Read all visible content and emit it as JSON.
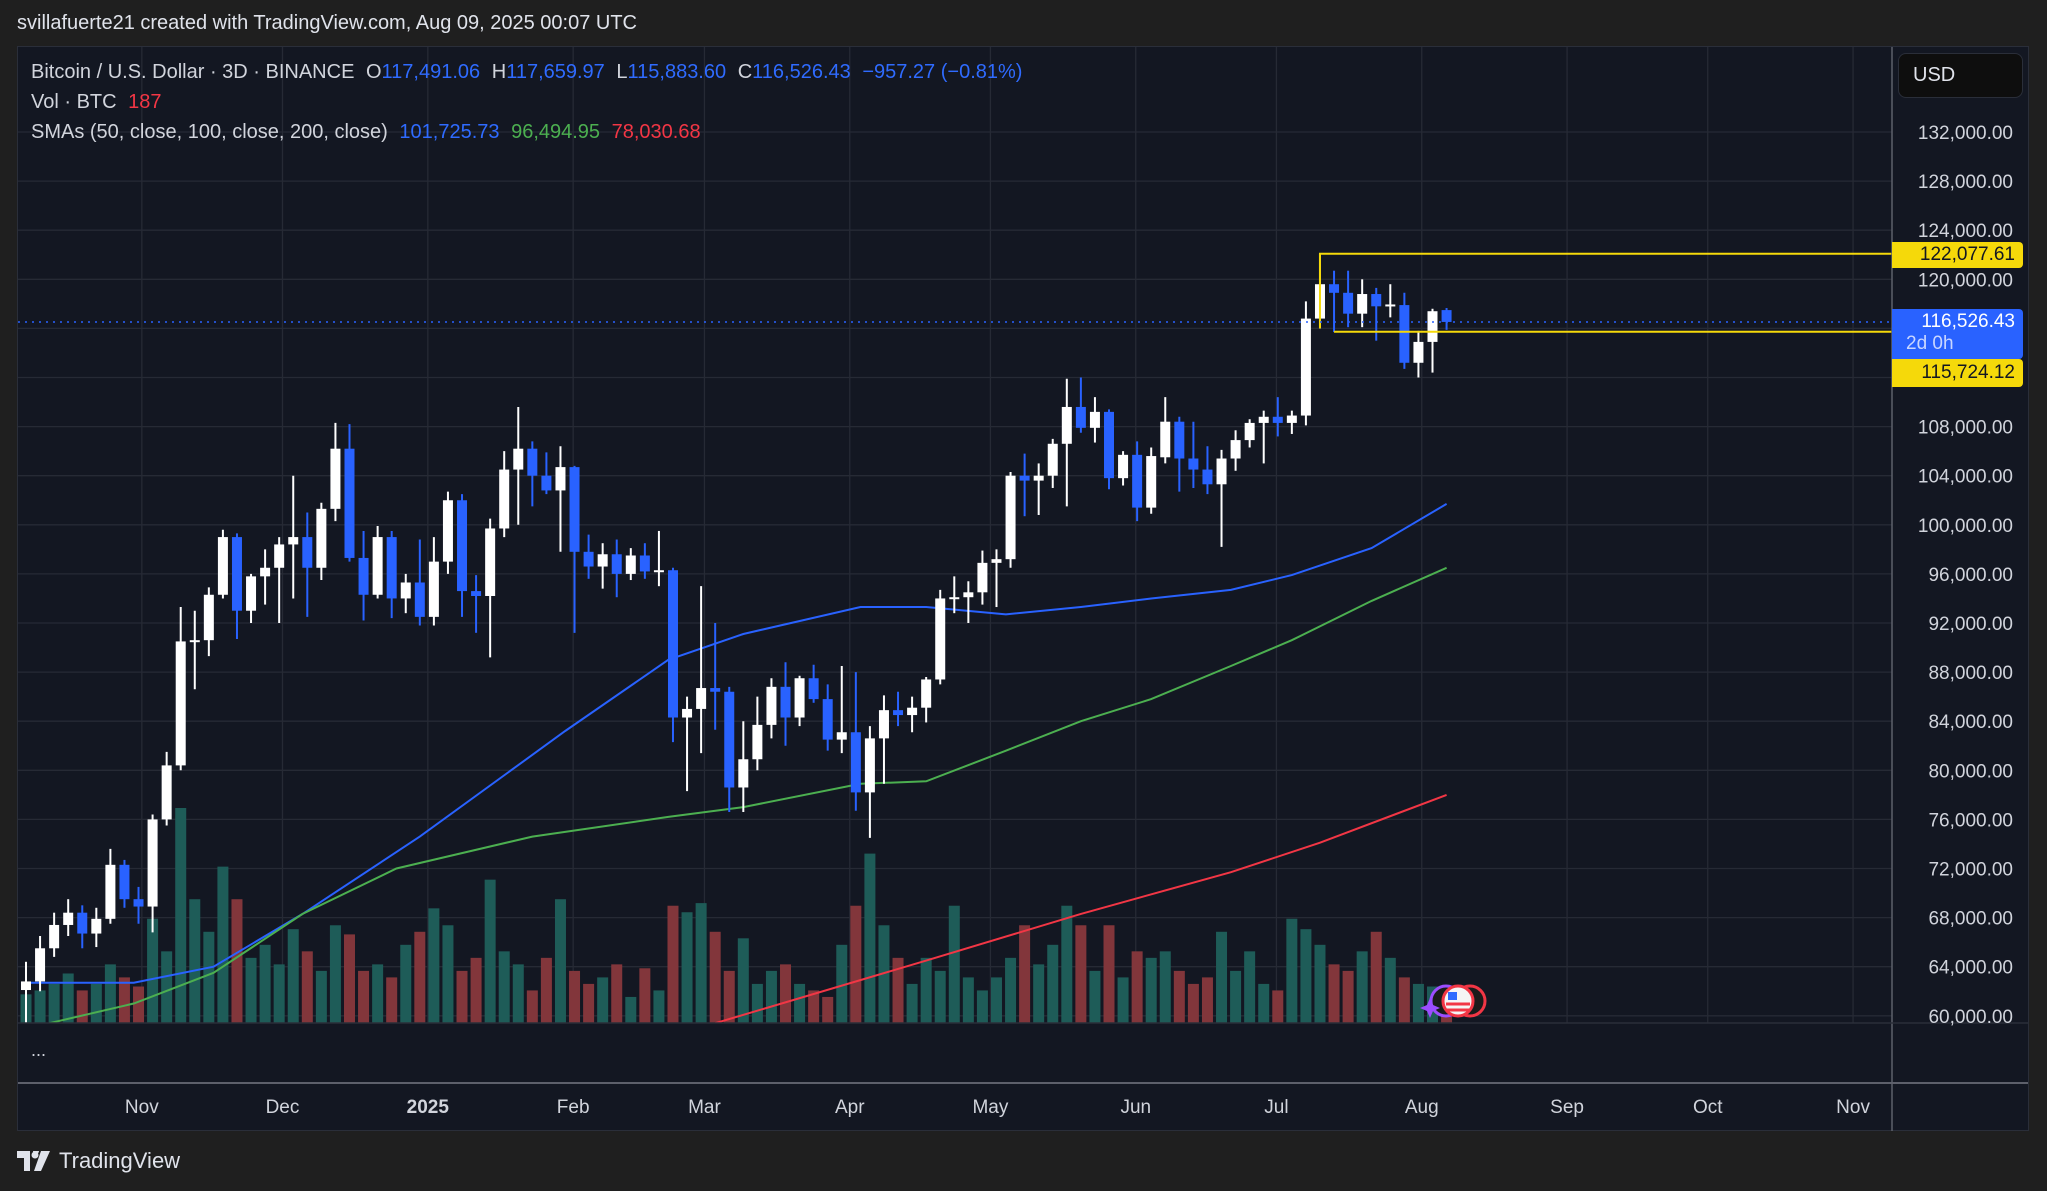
{
  "caption": "svillafuerte21 created with TradingView.com, Aug 09, 2025 00:07 UTC",
  "legend": {
    "symbol": "Bitcoin / U.S. Dollar · 3D · BINANCE",
    "open_label": "O",
    "open": "117,491.06",
    "high_label": "H",
    "high": "117,659.97",
    "low_label": "L",
    "low": "115,883.60",
    "close_label": "C",
    "close": "116,526.43",
    "change": "−957.27 (−0.81%)",
    "vol_label": "Vol · BTC",
    "vol_value": "187",
    "sma_label": "SMAs (50, close, 100, close, 200, close)",
    "sma50": "101,725.73",
    "sma100": "96,494.95",
    "sma200": "78,030.68"
  },
  "currency_button": "USD",
  "more_label": "...",
  "price_labels": {
    "resistance": "122,077.61",
    "current": "116,526.43",
    "countdown": "2d 0h",
    "support": "115,724.12"
  },
  "logo_text": "TradingView",
  "colors": {
    "up": "#ffffff",
    "down": "#2962ff",
    "vol_up": "#1e5c58",
    "vol_down": "#82363b",
    "sma50": "#2962ff",
    "sma100": "#4caf50",
    "sma200": "#f23645",
    "level": "#f5d90a",
    "current": "#2962ff"
  },
  "chart_data": {
    "type": "candlestick",
    "interval": "3D",
    "first_candle_open": "2024-10-09",
    "ylim": [
      58000,
      134000
    ],
    "y_ticks": [
      132000,
      128000,
      124000,
      120000,
      108000,
      104000,
      100000,
      96000,
      92000,
      88000,
      84000,
      80000,
      76000,
      72000,
      68000,
      64000,
      60000
    ],
    "y_tick_labels": [
      "132,000.00",
      "128,000.00",
      "124,000.00",
      "120,000.00",
      "108,000.00",
      "104,000.00",
      "100,000.00",
      "96,000.00",
      "92,000.00",
      "88,000.00",
      "84,000.00",
      "80,000.00",
      "76,000.00",
      "72,000.00",
      "68,000.00",
      "64,000.00",
      "60,000.00"
    ],
    "x_ticks": [
      {
        "date": "2024-11-01",
        "label": "Nov"
      },
      {
        "date": "2024-12-01",
        "label": "Dec"
      },
      {
        "date": "2025-01-01",
        "label": "2025",
        "bold": true
      },
      {
        "date": "2025-02-01",
        "label": "Feb"
      },
      {
        "date": "2025-03-01",
        "label": "Mar"
      },
      {
        "date": "2025-04-01",
        "label": "Apr"
      },
      {
        "date": "2025-05-01",
        "label": "May"
      },
      {
        "date": "2025-06-01",
        "label": "Jun"
      },
      {
        "date": "2025-07-01",
        "label": "Jul"
      },
      {
        "date": "2025-08-01",
        "label": "Aug"
      },
      {
        "date": "2025-09-01",
        "label": "Sep"
      },
      {
        "date": "2025-10-01",
        "label": "Oct"
      },
      {
        "date": "2025-11-01",
        "label": "Nov"
      }
    ],
    "ohlc": [
      [
        62100,
        64400,
        58900,
        62800
      ],
      [
        62800,
        66500,
        62000,
        65500
      ],
      [
        65500,
        68400,
        64800,
        67400
      ],
      [
        67400,
        69500,
        66500,
        68400
      ],
      [
        68400,
        69000,
        65500,
        66700
      ],
      [
        66700,
        68800,
        65600,
        67900
      ],
      [
        67900,
        73600,
        67500,
        72300
      ],
      [
        72300,
        72700,
        68800,
        69500
      ],
      [
        69500,
        70500,
        67500,
        68900
      ],
      [
        68900,
        76400,
        66800,
        76000
      ],
      [
        76000,
        81500,
        75500,
        80400
      ],
      [
        80400,
        93300,
        80000,
        90500
      ],
      [
        90500,
        93000,
        86600,
        90600
      ],
      [
        90600,
        94900,
        89300,
        94300
      ],
      [
        94300,
        99600,
        94000,
        99000
      ],
      [
        99000,
        99300,
        90700,
        93000
      ],
      [
        93000,
        96000,
        92000,
        95800
      ],
      [
        95800,
        98000,
        93500,
        96500
      ],
      [
        96500,
        99000,
        92000,
        98400
      ],
      [
        98400,
        104000,
        94000,
        99000
      ],
      [
        99000,
        101000,
        92500,
        96500
      ],
      [
        96500,
        101800,
        95500,
        101300
      ],
      [
        101300,
        108300,
        100300,
        106200
      ],
      [
        106200,
        108200,
        97000,
        97300
      ],
      [
        97300,
        99500,
        92200,
        94300
      ],
      [
        94300,
        99900,
        94000,
        99000
      ],
      [
        99000,
        99500,
        92400,
        94000
      ],
      [
        94000,
        96000,
        92800,
        95300
      ],
      [
        95300,
        98800,
        91800,
        92500
      ],
      [
        92500,
        99000,
        91800,
        97000
      ],
      [
        97000,
        102700,
        96000,
        102000
      ],
      [
        102000,
        102500,
        92500,
        94600
      ],
      [
        94600,
        95900,
        91200,
        94200
      ],
      [
        94200,
        100500,
        89200,
        99700
      ],
      [
        99700,
        106000,
        99000,
        104500
      ],
      [
        104500,
        109600,
        100000,
        106200
      ],
      [
        106200,
        106800,
        101500,
        104000
      ],
      [
        104000,
        105900,
        102500,
        102800
      ],
      [
        102800,
        106400,
        97800,
        104700
      ],
      [
        104700,
        104800,
        91200,
        97800
      ],
      [
        97800,
        99200,
        95600,
        96600
      ],
      [
        96600,
        98500,
        94800,
        97600
      ],
      [
        97600,
        98800,
        94100,
        96000
      ],
      [
        96000,
        98100,
        95500,
        97500
      ],
      [
        97500,
        98500,
        95600,
        96200
      ],
      [
        96200,
        99500,
        95000,
        96300
      ],
      [
        96300,
        96500,
        82300,
        84300
      ],
      [
        84300,
        86000,
        78300,
        85000
      ],
      [
        85000,
        95000,
        81400,
        86700
      ],
      [
        86700,
        92000,
        83300,
        86400
      ],
      [
        86400,
        86800,
        76600,
        78600
      ],
      [
        78600,
        84000,
        76600,
        80900
      ],
      [
        80900,
        86000,
        80000,
        83700
      ],
      [
        83700,
        87500,
        82600,
        86800
      ],
      [
        86800,
        88800,
        82000,
        84300
      ],
      [
        84300,
        87700,
        83600,
        87500
      ],
      [
        87500,
        88600,
        85500,
        85800
      ],
      [
        85800,
        87000,
        81600,
        82500
      ],
      [
        82500,
        88500,
        81400,
        83100
      ],
      [
        83100,
        88000,
        76700,
        78200
      ],
      [
        78200,
        83600,
        74500,
        82600
      ],
      [
        82600,
        86100,
        78900,
        84900
      ],
      [
        84900,
        86400,
        83600,
        84500
      ],
      [
        84500,
        86000,
        83100,
        85100
      ],
      [
        85100,
        87600,
        83900,
        87400
      ],
      [
        87400,
        94700,
        87000,
        94000
      ],
      [
        94000,
        95800,
        92800,
        94100
      ],
      [
        94100,
        95400,
        92000,
        94500
      ],
      [
        94500,
        97900,
        93500,
        96900
      ],
      [
        96900,
        98000,
        93300,
        97200
      ],
      [
        97200,
        104300,
        96500,
        104000
      ],
      [
        104000,
        105800,
        100700,
        103600
      ],
      [
        103600,
        105000,
        100800,
        104000
      ],
      [
        104000,
        107000,
        103000,
        106600
      ],
      [
        106600,
        111900,
        101500,
        109600
      ],
      [
        109600,
        112000,
        107500,
        107900
      ],
      [
        107900,
        110400,
        106700,
        109200
      ],
      [
        109200,
        109400,
        102900,
        103800
      ],
      [
        103800,
        106000,
        103200,
        105700
      ],
      [
        105700,
        106800,
        100300,
        101400
      ],
      [
        101400,
        106300,
        100900,
        105600
      ],
      [
        105500,
        110400,
        105000,
        108400
      ],
      [
        108400,
        108800,
        102700,
        105400
      ],
      [
        105400,
        108400,
        103000,
        104500
      ],
      [
        104500,
        106400,
        102500,
        103300
      ],
      [
        103300,
        106100,
        98200,
        105400
      ],
      [
        105400,
        107700,
        104400,
        106900
      ],
      [
        106900,
        108600,
        106300,
        108300
      ],
      [
        108300,
        109300,
        105000,
        108800
      ],
      [
        108800,
        110400,
        107200,
        108300
      ],
      [
        108300,
        109300,
        107400,
        108900
      ],
      [
        108900,
        118200,
        108100,
        116800
      ],
      [
        116800,
        122080,
        116000,
        119600
      ],
      [
        119600,
        120700,
        115700,
        118900
      ],
      [
        118900,
        120700,
        116100,
        117200
      ],
      [
        117200,
        120000,
        116100,
        118800
      ],
      [
        118800,
        119300,
        115000,
        117800
      ],
      [
        117900,
        119600,
        116900,
        117950
      ],
      [
        117900,
        118900,
        112700,
        113200
      ],
      [
        113200,
        115800,
        112000,
        114900
      ],
      [
        114900,
        117600,
        112400,
        117400
      ],
      [
        117491,
        117660,
        115884,
        116526
      ]
    ],
    "volume": [
      22,
      25,
      30,
      38,
      25,
      30,
      45,
      35,
      28,
      80,
      55,
      165,
      95,
      70,
      120,
      95,
      50,
      60,
      45,
      72,
      55,
      40,
      75,
      68,
      40,
      45,
      35,
      60,
      70,
      88,
      75,
      40,
      50,
      110,
      55,
      45,
      25,
      50,
      95,
      40,
      30,
      35,
      45,
      20,
      42,
      25,
      90,
      85,
      92,
      70,
      40,
      65,
      30,
      40,
      45,
      30,
      25,
      20,
      60,
      90,
      130,
      75,
      50,
      30,
      50,
      40,
      90,
      35,
      25,
      35,
      50,
      75,
      45,
      60,
      90,
      75,
      40,
      75,
      35,
      55,
      50,
      55,
      40,
      30,
      35,
      70,
      40,
      55,
      30,
      25,
      80,
      72,
      60,
      45,
      40,
      55,
      70,
      50,
      35,
      30,
      28,
      25
    ],
    "sma": [
      {
        "period": 50,
        "points": [
          [
            "2024-10-09",
            62700
          ],
          [
            "2024-11-01",
            62700
          ],
          [
            "2024-11-18",
            64000
          ],
          [
            "2024-12-07",
            68300
          ],
          [
            "2025-01-01",
            74600
          ],
          [
            "2025-02-01",
            83200
          ],
          [
            "2025-02-23",
            89000
          ],
          [
            "2025-03-11",
            91100
          ],
          [
            "2025-04-05",
            93300
          ],
          [
            "2025-04-19",
            93300
          ],
          [
            "2025-05-06",
            92700
          ],
          [
            "2025-05-22",
            93300
          ],
          [
            "2025-06-06",
            94000
          ],
          [
            "2025-06-23",
            94700
          ],
          [
            "2025-07-06",
            95900
          ],
          [
            "2025-07-23",
            98100
          ],
          [
            "2025-08-08",
            101700
          ]
        ]
      },
      {
        "period": 100,
        "points": [
          [
            "2024-10-14",
            59400
          ],
          [
            "2024-11-01",
            61000
          ],
          [
            "2024-11-18",
            63500
          ],
          [
            "2024-12-07",
            68300
          ],
          [
            "2024-12-27",
            72000
          ],
          [
            "2025-01-25",
            74600
          ],
          [
            "2025-02-23",
            76200
          ],
          [
            "2025-03-11",
            77000
          ],
          [
            "2025-04-05",
            78900
          ],
          [
            "2025-04-19",
            79100
          ],
          [
            "2025-05-06",
            81600
          ],
          [
            "2025-05-22",
            84000
          ],
          [
            "2025-06-06",
            85800
          ],
          [
            "2025-06-23",
            88500
          ],
          [
            "2025-07-06",
            90600
          ],
          [
            "2025-07-23",
            93800
          ],
          [
            "2025-08-08",
            96500
          ]
        ]
      },
      {
        "period": 200,
        "points": [
          [
            "2025-03-05",
            59400
          ],
          [
            "2025-04-19",
            64500
          ],
          [
            "2025-05-22",
            68300
          ],
          [
            "2025-06-23",
            71700
          ],
          [
            "2025-07-12",
            74100
          ],
          [
            "2025-08-08",
            78000
          ]
        ]
      }
    ],
    "levels": [
      {
        "price": 122077.61,
        "from": "2025-07-12",
        "color": "yellow"
      },
      {
        "price": 115724.12,
        "from": "2025-07-15",
        "color": "yellow"
      }
    ],
    "current_price": 116526.43
  }
}
